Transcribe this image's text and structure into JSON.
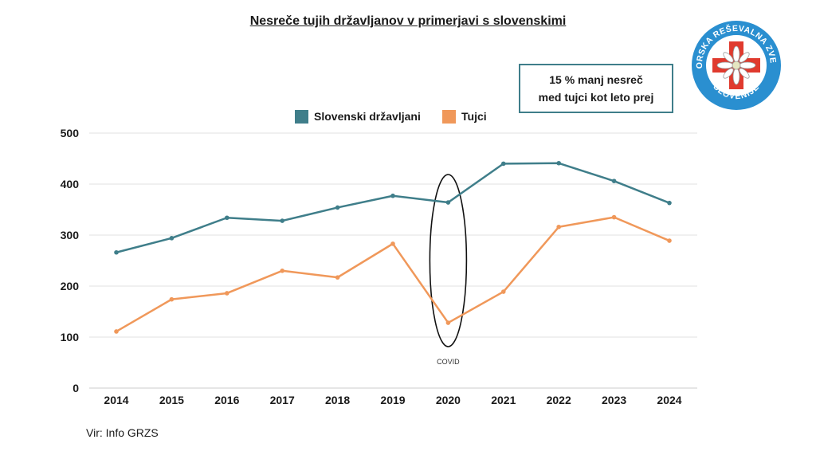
{
  "chart_data": {
    "type": "line",
    "title": "Nesreče tujih državljanov v primerjavi s slovenskimi",
    "xlabel": "",
    "ylabel": "",
    "categories": [
      "2014",
      "2015",
      "2016",
      "2017",
      "2018",
      "2019",
      "2020",
      "2021",
      "2022",
      "2023",
      "2024"
    ],
    "ylim": [
      0,
      500
    ],
    "yticks": [
      0,
      100,
      200,
      300,
      400,
      500
    ],
    "grid": true,
    "series": [
      {
        "name": "Slovenski državljani",
        "color": "#3f7e8a",
        "values": [
          266,
          294,
          334,
          328,
          354,
          377,
          364,
          440,
          441,
          406,
          363
        ]
      },
      {
        "name": "Tujci",
        "color": "#f0985a",
        "values": [
          111,
          174,
          186,
          230,
          217,
          283,
          128,
          189,
          316,
          335,
          289
        ]
      }
    ],
    "annotations": [
      {
        "text": "COVID",
        "category": "2020"
      }
    ]
  },
  "callout": {
    "line1": "15 % manj nesreč",
    "line2": "med tujci kot leto prej"
  },
  "logo": {
    "text_top": "GORSKA REŠEVALNA ZVEZA",
    "text_bottom": "SLOVENIJE",
    "ring_color": "#2a8fd0",
    "cross_color": "#e03a2e"
  },
  "source": "Vir: Info GRZS"
}
